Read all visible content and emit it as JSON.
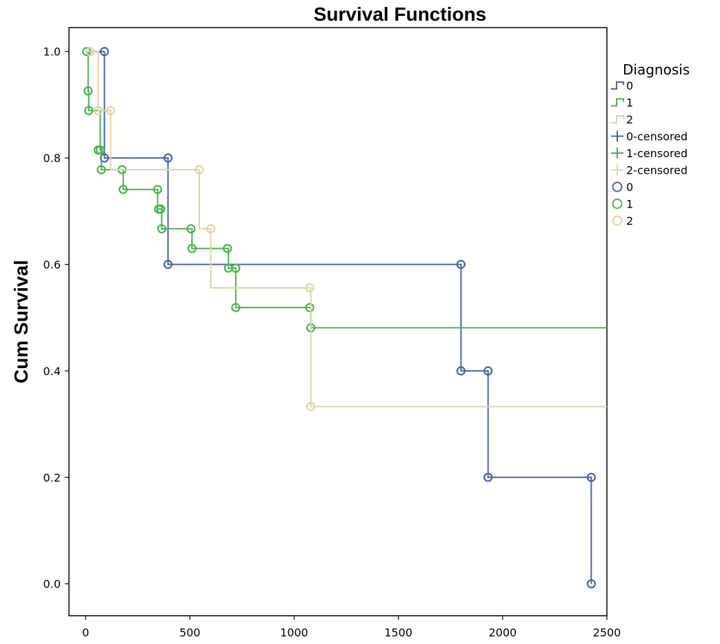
{
  "chart_data": {
    "type": "line",
    "title": "Survival Functions",
    "xlabel": "",
    "ylabel": "Cum Survival",
    "xlim": [
      -80,
      2500
    ],
    "ylim": [
      -0.06,
      1.045
    ],
    "xticks": [
      "0",
      "500",
      "1000",
      "1500",
      "2000",
      "2500"
    ],
    "xtick_values": [
      0,
      500,
      1000,
      1500,
      2000,
      2500
    ],
    "yticks": [
      "0.0",
      "0.2",
      "0.4",
      "0.6",
      "0.8",
      "1.0"
    ],
    "ytick_values": [
      0.0,
      0.2,
      0.4,
      0.6,
      0.8,
      1.0
    ],
    "grid": false,
    "legend": {
      "title": "Diagnosis",
      "placement": "right-outside",
      "entries": [
        {
          "label": "0",
          "kind": "line",
          "series": 0
        },
        {
          "label": "1",
          "kind": "line",
          "series": 1
        },
        {
          "label": "2",
          "kind": "line",
          "series": 2
        },
        {
          "label": "0-censored",
          "kind": "cross",
          "series": 0
        },
        {
          "label": "1-censored",
          "kind": "cross",
          "series": 1
        },
        {
          "label": "2-censored",
          "kind": "cross",
          "series": 2
        },
        {
          "label": "0",
          "kind": "circle",
          "series": 0
        },
        {
          "label": "1",
          "kind": "circle",
          "series": 1
        },
        {
          "label": "2",
          "kind": "circle",
          "series": 2
        }
      ]
    },
    "series": [
      {
        "name": "0",
        "color": "#4a5fb5",
        "x": [
          0,
          90,
          90,
          395,
          395,
          1800,
          1800,
          1930,
          1930,
          2425,
          2425
        ],
        "y": [
          1.0,
          1.0,
          0.8,
          0.8,
          0.6,
          0.6,
          0.4,
          0.4,
          0.2,
          0.2,
          0.0
        ],
        "events": [
          {
            "x": 90,
            "y": 1.0
          },
          {
            "x": 90,
            "y": 0.8
          },
          {
            "x": 395,
            "y": 0.8
          },
          {
            "x": 395,
            "y": 0.6
          },
          {
            "x": 1800,
            "y": 0.6
          },
          {
            "x": 1800,
            "y": 0.4
          },
          {
            "x": 1930,
            "y": 0.4
          },
          {
            "x": 1930,
            "y": 0.2
          },
          {
            "x": 2425,
            "y": 0.2
          },
          {
            "x": 2425,
            "y": 0.0
          }
        ]
      },
      {
        "name": "1",
        "color": "#44b549",
        "x": [
          0,
          12,
          12,
          15,
          15,
          70,
          70,
          75,
          75,
          180,
          180,
          345,
          345,
          350,
          350,
          365,
          365,
          510,
          510,
          685,
          685,
          720,
          720,
          1080,
          1080,
          2500
        ],
        "y": [
          1.0,
          1.0,
          0.926,
          0.926,
          0.889,
          0.889,
          0.815,
          0.815,
          0.778,
          0.778,
          0.741,
          0.741,
          0.704,
          0.704,
          0.704,
          0.704,
          0.667,
          0.667,
          0.63,
          0.63,
          0.593,
          0.593,
          0.519,
          0.519,
          0.481,
          0.481
        ],
        "events": [
          {
            "x": 5,
            "y": 1.0
          },
          {
            "x": 12,
            "y": 0.926
          },
          {
            "x": 15,
            "y": 0.889
          },
          {
            "x": 60,
            "y": 0.815
          },
          {
            "x": 70,
            "y": 0.815
          },
          {
            "x": 75,
            "y": 0.778
          },
          {
            "x": 175,
            "y": 0.778
          },
          {
            "x": 180,
            "y": 0.741
          },
          {
            "x": 345,
            "y": 0.741
          },
          {
            "x": 350,
            "y": 0.704
          },
          {
            "x": 360,
            "y": 0.704
          },
          {
            "x": 365,
            "y": 0.667
          },
          {
            "x": 505,
            "y": 0.667
          },
          {
            "x": 510,
            "y": 0.63
          },
          {
            "x": 680,
            "y": 0.63
          },
          {
            "x": 685,
            "y": 0.593
          },
          {
            "x": 720,
            "y": 0.593
          },
          {
            "x": 720,
            "y": 0.519
          },
          {
            "x": 1075,
            "y": 0.519
          },
          {
            "x": 1080,
            "y": 0.481
          }
        ]
      },
      {
        "name": "2",
        "color": "#dcd5a1",
        "x": [
          0,
          60,
          60,
          120,
          120,
          545,
          545,
          600,
          600,
          1080,
          1080,
          2500
        ],
        "y": [
          1.0,
          1.0,
          0.889,
          0.889,
          0.778,
          0.778,
          0.667,
          0.667,
          0.556,
          0.556,
          0.333,
          0.333
        ],
        "events": [
          {
            "x": 20,
            "y": 1.0
          },
          {
            "x": 60,
            "y": 0.889
          },
          {
            "x": 120,
            "y": 0.889
          },
          {
            "x": 545,
            "y": 0.778
          },
          {
            "x": 600,
            "y": 0.667
          },
          {
            "x": 1075,
            "y": 0.556
          },
          {
            "x": 1080,
            "y": 0.333
          }
        ]
      }
    ]
  }
}
